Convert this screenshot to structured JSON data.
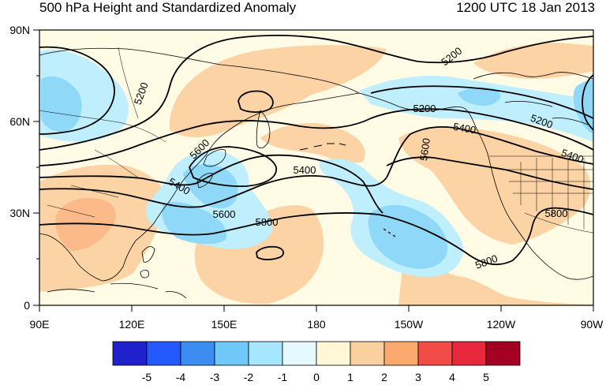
{
  "header": {
    "title": "500 hPa Height and Standardized Anomaly",
    "datetime": "1200 UTC 18 Jan 2013"
  },
  "map": {
    "lat_labels": [
      "90N",
      "60N",
      "30N",
      "0"
    ],
    "lon_labels": [
      "90E",
      "120E",
      "150E",
      "180",
      "150W",
      "120W",
      "90W"
    ],
    "contour_labels": [
      "5200",
      "5200",
      "5200",
      "5200",
      "5400",
      "5400",
      "5400",
      "5400",
      "5600",
      "5600",
      "5600",
      "5800",
      "5800",
      "5800"
    ],
    "colors": {
      "ocean_background": "#fffbe5",
      "land_outline": "#000000",
      "contour_line": "#000000"
    }
  },
  "colorbar": {
    "labels": [
      "-5",
      "-4",
      "-3",
      "-2",
      "-1",
      "0",
      "1",
      "2",
      "3",
      "4",
      "5"
    ],
    "colors": [
      "#2121cc",
      "#2459ff",
      "#3d8cf2",
      "#6ec8fa",
      "#a6e6ff",
      "#e4faff",
      "#fff7d6",
      "#fbd09e",
      "#fba96e",
      "#f34b46",
      "#e6273c",
      "#a30022"
    ]
  }
}
